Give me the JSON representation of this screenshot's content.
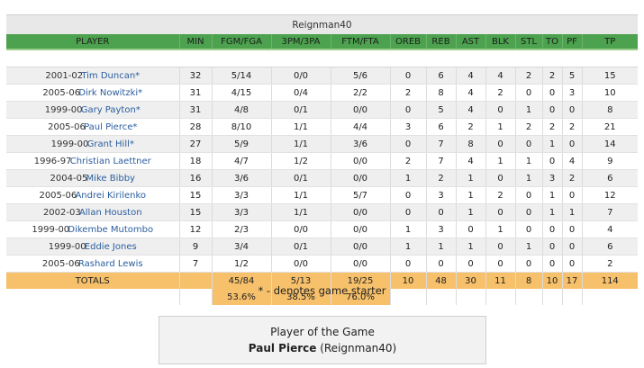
{
  "team_header": "Reignman40",
  "columns": [
    "PLAYER",
    "MIN",
    "FGM/FGA",
    "3PM/3PA",
    "FTM/FTA",
    "OREB",
    "REB",
    "AST",
    "BLK",
    "STL",
    "TO",
    "PF",
    "TP"
  ],
  "players": [
    {
      "season": "2001-02",
      "name": "Tim Duncan*",
      "stats": [
        "32",
        "5/14",
        "0/0",
        "5/6",
        "0",
        "6",
        "4",
        "4",
        "2",
        "2",
        "5",
        "15"
      ]
    },
    {
      "season": "2005-06",
      "name": "Dirk Nowitzki*",
      "stats": [
        "31",
        "4/15",
        "0/4",
        "2/2",
        "2",
        "8",
        "4",
        "2",
        "0",
        "0",
        "3",
        "10"
      ]
    },
    {
      "season": "1999-00",
      "name": "Gary Payton*",
      "stats": [
        "31",
        "4/8",
        "0/1",
        "0/0",
        "0",
        "5",
        "4",
        "0",
        "1",
        "0",
        "0",
        "8"
      ]
    },
    {
      "season": "2005-06",
      "name": "Paul Pierce*",
      "stats": [
        "28",
        "8/10",
        "1/1",
        "4/4",
        "3",
        "6",
        "2",
        "1",
        "2",
        "2",
        "2",
        "21"
      ]
    },
    {
      "season": "1999-00",
      "name": "Grant Hill*",
      "stats": [
        "27",
        "5/9",
        "1/1",
        "3/6",
        "0",
        "7",
        "8",
        "0",
        "0",
        "1",
        "0",
        "14"
      ]
    },
    {
      "season": "1996-97",
      "name": "Christian Laettner",
      "stats": [
        "18",
        "4/7",
        "1/2",
        "0/0",
        "2",
        "7",
        "4",
        "1",
        "1",
        "0",
        "4",
        "9"
      ]
    },
    {
      "season": "2004-05",
      "name": "Mike Bibby",
      "stats": [
        "16",
        "3/6",
        "0/1",
        "0/0",
        "1",
        "2",
        "1",
        "0",
        "1",
        "3",
        "2",
        "6"
      ]
    },
    {
      "season": "2005-06",
      "name": "Andrei Kirilenko",
      "stats": [
        "15",
        "3/3",
        "1/1",
        "5/7",
        "0",
        "3",
        "1",
        "2",
        "0",
        "1",
        "0",
        "12"
      ]
    },
    {
      "season": "2002-03",
      "name": "Allan Houston",
      "stats": [
        "15",
        "3/3",
        "1/1",
        "0/0",
        "0",
        "0",
        "1",
        "0",
        "0",
        "1",
        "1",
        "7"
      ]
    },
    {
      "season": "1999-00",
      "name": "Dikembe Mutombo",
      "stats": [
        "12",
        "2/3",
        "0/0",
        "0/0",
        "1",
        "3",
        "0",
        "1",
        "0",
        "0",
        "0",
        "4"
      ]
    },
    {
      "season": "1999-00",
      "name": "Eddie Jones",
      "stats": [
        "9",
        "3/4",
        "0/1",
        "0/0",
        "1",
        "1",
        "1",
        "0",
        "1",
        "0",
        "0",
        "6"
      ]
    },
    {
      "season": "2005-06",
      "name": "Rashard Lewis",
      "stats": [
        "7",
        "1/2",
        "0/0",
        "0/0",
        "0",
        "0",
        "0",
        "0",
        "0",
        "0",
        "0",
        "2"
      ]
    }
  ],
  "totals": {
    "label": "TOTALS",
    "stats": [
      "",
      "45/84",
      "5/13",
      "19/25",
      "10",
      "48",
      "30",
      "11",
      "8",
      "10",
      "17",
      "114"
    ]
  },
  "percentages": {
    "fg": "53.6%",
    "three": "38.5%",
    "ft": "76.0%"
  },
  "starter_note": "* - denotes game starter",
  "player_of_game": {
    "title": "Player of the Game",
    "name": "Paul Pierce",
    "team": "(Reignman40)"
  }
}
